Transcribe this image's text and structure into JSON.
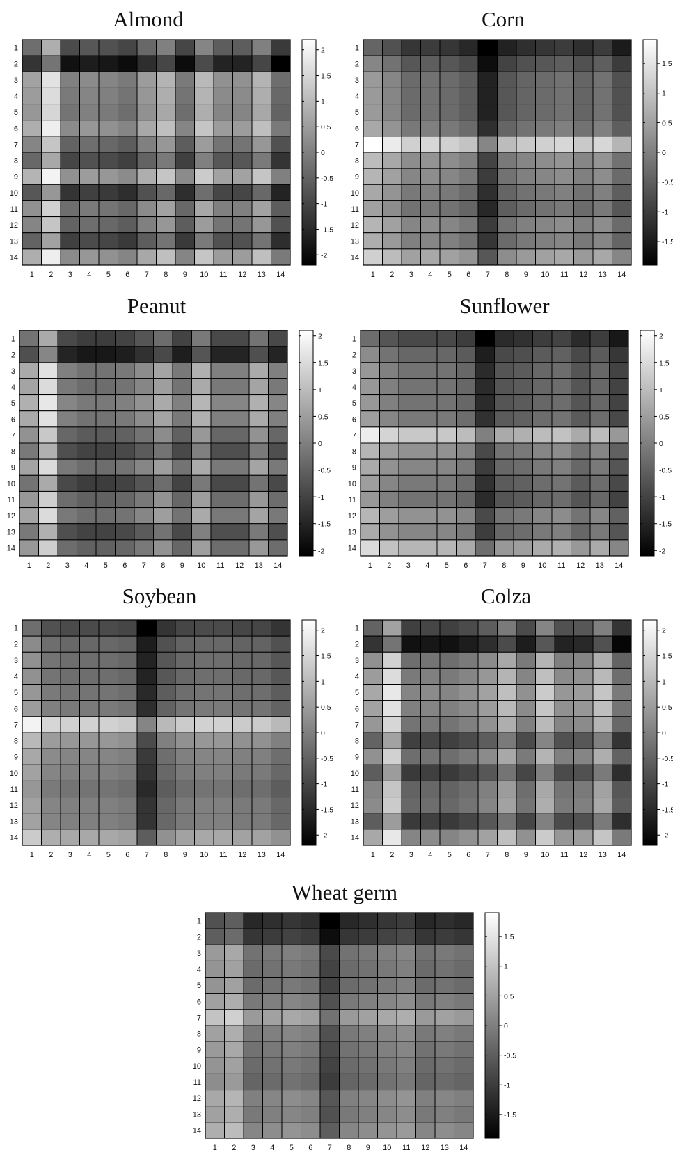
{
  "chart_data": [
    {
      "type": "heatmap",
      "title": "Almond",
      "x_tick_labels": [
        "1",
        "2",
        "3",
        "4",
        "5",
        "6",
        "7",
        "8",
        "9",
        "10",
        "11",
        "12",
        "13",
        "14"
      ],
      "y_tick_labels": [
        "1",
        "2",
        "3",
        "4",
        "5",
        "6",
        "7",
        "8",
        "9",
        "10",
        "11",
        "12",
        "13",
        "14"
      ],
      "colormap": "gray",
      "clim": [
        -2.2,
        2.2
      ],
      "colorbar_ticks": [
        {
          "value": 2,
          "label": "2"
        },
        {
          "value": 1.5,
          "label": "1.5"
        },
        {
          "value": 1,
          "label": "1"
        },
        {
          "value": 0.5,
          "label": "0.5"
        },
        {
          "value": 0,
          "label": "0"
        },
        {
          "value": -0.5,
          "label": "-0.5"
        },
        {
          "value": -1,
          "label": "-1"
        },
        {
          "value": -1.5,
          "label": "-1.5"
        },
        {
          "value": -2,
          "label": "-2"
        }
      ],
      "row_effect": [
        -0.3,
        -1.3,
        0.6,
        0.5,
        0.4,
        0.8,
        0.1,
        -0.4,
        0.9,
        -0.7,
        0.3,
        0.1,
        -0.5,
        0.8
      ],
      "col_effect": [
        0.0,
        1.1,
        -0.6,
        -0.4,
        -0.5,
        -0.7,
        -0.1,
        0.3,
        -0.7,
        0.4,
        -0.3,
        -0.3,
        0.3,
        -0.9
      ]
    },
    {
      "type": "heatmap",
      "title": "Corn",
      "x_tick_labels": [
        "1",
        "2",
        "3",
        "4",
        "5",
        "6",
        "7",
        "8",
        "9",
        "10",
        "11",
        "12",
        "13",
        "14"
      ],
      "y_tick_labels": [
        "1",
        "2",
        "3",
        "4",
        "5",
        "6",
        "7",
        "8",
        "9",
        "10",
        "11",
        "12",
        "13",
        "14"
      ],
      "colormap": "gray",
      "clim": [
        -1.9,
        1.9
      ],
      "colorbar_ticks": [
        {
          "value": 1.5,
          "label": "1.5"
        },
        {
          "value": 1,
          "label": "1"
        },
        {
          "value": 0.5,
          "label": "0.5"
        },
        {
          "value": 0,
          "label": "0"
        },
        {
          "value": -0.5,
          "label": "-0.5"
        },
        {
          "value": -1,
          "label": "-1"
        },
        {
          "value": -1.5,
          "label": "-1.5"
        }
      ],
      "row_effect": [
        -1.1,
        -0.6,
        -0.3,
        -0.3,
        -0.3,
        -0.1,
        1.2,
        0.2,
        0.1,
        -0.1,
        -0.2,
        0.1,
        0.0,
        0.5
      ],
      "col_effect": [
        0.7,
        0.4,
        0.0,
        0.1,
        0.0,
        -0.2,
        -1.1,
        -0.3,
        -0.1,
        0.0,
        0.1,
        -0.1,
        0.1,
        -0.4
      ]
    },
    {
      "type": "heatmap",
      "title": "Peanut",
      "x_tick_labels": [
        "1",
        "2",
        "3",
        "4",
        "5",
        "6",
        "7",
        "8",
        "9",
        "10",
        "11",
        "12",
        "13",
        "14"
      ],
      "y_tick_labels": [
        "1",
        "2",
        "3",
        "4",
        "5",
        "6",
        "7",
        "8",
        "9",
        "10",
        "11",
        "12",
        "13",
        "14"
      ],
      "colormap": "gray",
      "clim": [
        -2.1,
        2.1
      ],
      "colorbar_ticks": [
        {
          "value": 2,
          "label": "2"
        },
        {
          "value": 1.5,
          "label": "1.5"
        },
        {
          "value": 1,
          "label": "1"
        },
        {
          "value": 0.5,
          "label": "0.5"
        },
        {
          "value": 0,
          "label": "0"
        },
        {
          "value": -0.5,
          "label": "-0.5"
        },
        {
          "value": -1,
          "label": "-1"
        },
        {
          "value": -1.5,
          "label": "-1.5"
        },
        {
          "value": -2,
          "label": "-2"
        }
      ],
      "row_effect": [
        -0.6,
        -1.2,
        0.3,
        0.2,
        0.4,
        0.3,
        -0.1,
        -0.5,
        0.2,
        -0.6,
        0.0,
        0.2,
        -0.5,
        0.0
      ],
      "col_effect": [
        0.4,
        1.3,
        -0.3,
        -0.5,
        -0.5,
        -0.4,
        -0.1,
        0.3,
        -0.4,
        0.5,
        -0.3,
        -0.3,
        0.4,
        -0.3
      ]
    },
    {
      "type": "heatmap",
      "title": "Sunflower",
      "x_tick_labels": [
        "1",
        "2",
        "3",
        "4",
        "5",
        "6",
        "7",
        "8",
        "9",
        "10",
        "11",
        "12",
        "13",
        "14"
      ],
      "y_tick_labels": [
        "1",
        "2",
        "3",
        "4",
        "5",
        "6",
        "7",
        "8",
        "9",
        "10",
        "11",
        "12",
        "13",
        "14"
      ],
      "colormap": "gray",
      "clim": [
        -2.1,
        2.1
      ],
      "colorbar_ticks": [
        {
          "value": 2,
          "label": "2"
        },
        {
          "value": 1.5,
          "label": "1.5"
        },
        {
          "value": 1,
          "label": "1"
        },
        {
          "value": 0.5,
          "label": "0.5"
        },
        {
          "value": 0,
          "label": "0"
        },
        {
          "value": -0.5,
          "label": "-0.5"
        },
        {
          "value": -1,
          "label": "-1"
        },
        {
          "value": -1.5,
          "label": "-1.5"
        },
        {
          "value": -2,
          "label": "-2"
        }
      ],
      "row_effect": [
        -1.0,
        -0.5,
        -0.3,
        -0.3,
        -0.3,
        -0.2,
        1.1,
        0.2,
        0.0,
        -0.2,
        -0.3,
        0.2,
        0.0,
        0.8
      ],
      "col_effect": [
        0.7,
        0.3,
        0.1,
        0.1,
        0.1,
        -0.1,
        -1.1,
        -0.4,
        -0.3,
        -0.1,
        0.0,
        -0.4,
        -0.1,
        -0.7
      ]
    },
    {
      "type": "heatmap",
      "title": "Soybean",
      "x_tick_labels": [
        "1",
        "2",
        "3",
        "4",
        "5",
        "6",
        "7",
        "8",
        "9",
        "10",
        "11",
        "12",
        "13",
        "14"
      ],
      "y_tick_labels": [
        "1",
        "2",
        "3",
        "4",
        "5",
        "6",
        "7",
        "8",
        "9",
        "10",
        "11",
        "12",
        "13",
        "14"
      ],
      "colormap": "gray",
      "clim": [
        -2.2,
        2.2
      ],
      "colorbar_ticks": [
        {
          "value": 2,
          "label": "2"
        },
        {
          "value": 1.5,
          "label": "1.5"
        },
        {
          "value": 1,
          "label": "1"
        },
        {
          "value": 0.5,
          "label": "0.5"
        },
        {
          "value": 0,
          "label": "0"
        },
        {
          "value": -0.5,
          "label": "-0.5"
        },
        {
          "value": -1,
          "label": "-1"
        },
        {
          "value": -1.5,
          "label": "-1.5"
        },
        {
          "value": -2,
          "label": "-2"
        }
      ],
      "row_effect": [
        -1.0,
        -0.5,
        -0.4,
        -0.4,
        -0.3,
        -0.2,
        1.3,
        0.3,
        0.0,
        -0.1,
        -0.3,
        -0.1,
        -0.1,
        0.6
      ],
      "col_effect": [
        0.7,
        0.2,
        0.1,
        0.1,
        0.1,
        0.0,
        -1.2,
        -0.3,
        0.0,
        0.1,
        0.1,
        0.0,
        0.0,
        -0.3
      ]
    },
    {
      "type": "heatmap",
      "title": "Colza",
      "x_tick_labels": [
        "1",
        "2",
        "3",
        "4",
        "5",
        "6",
        "7",
        "8",
        "9",
        "10",
        "11",
        "12",
        "13",
        "14"
      ],
      "y_tick_labels": [
        "1",
        "2",
        "3",
        "4",
        "5",
        "6",
        "7",
        "8",
        "9",
        "10",
        "11",
        "12",
        "13",
        "14"
      ],
      "colormap": "gray",
      "clim": [
        -2.2,
        2.2
      ],
      "colorbar_ticks": [
        {
          "value": 2,
          "label": "2"
        },
        {
          "value": 1.5,
          "label": "1.5"
        },
        {
          "value": 1,
          "label": "1"
        },
        {
          "value": 0.5,
          "label": "0.5"
        },
        {
          "value": 0,
          "label": "0"
        },
        {
          "value": -0.5,
          "label": "-0.5"
        },
        {
          "value": -1,
          "label": "-1"
        },
        {
          "value": -1.5,
          "label": "-1.5"
        },
        {
          "value": -2,
          "label": "-2"
        }
      ],
      "row_effect": [
        -0.6,
        -1.4,
        0.2,
        0.4,
        0.6,
        0.5,
        0.3,
        -0.6,
        0.2,
        -0.7,
        0.0,
        0.1,
        -0.7,
        0.6
      ],
      "col_effect": [
        0.1,
        1.2,
        -0.5,
        -0.4,
        -0.5,
        -0.3,
        0.0,
        0.5,
        -0.3,
        0.7,
        -0.2,
        -0.1,
        0.6,
        -0.7
      ]
    },
    {
      "type": "heatmap",
      "title": "Wheat germ",
      "x_tick_labels": [
        "1",
        "2",
        "3",
        "4",
        "5",
        "6",
        "7",
        "8",
        "9",
        "10",
        "11",
        "12",
        "13",
        "14"
      ],
      "y_tick_labels": [
        "1",
        "2",
        "3",
        "4",
        "5",
        "6",
        "7",
        "8",
        "9",
        "10",
        "11",
        "12",
        "13",
        "14"
      ],
      "colormap": "gray",
      "clim": [
        -1.9,
        1.9
      ],
      "colorbar_ticks": [
        {
          "value": 1.5,
          "label": "1.5"
        },
        {
          "value": 1,
          "label": "1"
        },
        {
          "value": 0.5,
          "label": "0.5"
        },
        {
          "value": 0,
          "label": "0"
        },
        {
          "value": -0.5,
          "label": "-0.5"
        },
        {
          "value": -1,
          "label": "-1"
        },
        {
          "value": -1.5,
          "label": "-1.5"
        }
      ],
      "row_effect": [
        -1.1,
        -0.9,
        0.0,
        -0.1,
        -0.1,
        0.1,
        0.6,
        0.1,
        0.0,
        -0.1,
        -0.2,
        0.2,
        0.1,
        0.3
      ],
      "col_effect": [
        0.4,
        0.6,
        -0.2,
        -0.1,
        0.0,
        -0.1,
        -0.8,
        -0.2,
        -0.1,
        0.0,
        0.1,
        -0.2,
        -0.1,
        -0.2
      ]
    }
  ]
}
